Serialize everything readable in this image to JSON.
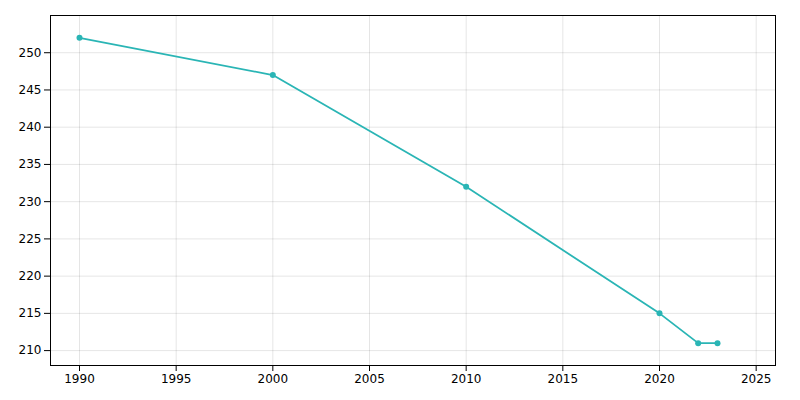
{
  "chart_data": {
    "type": "line",
    "x": [
      1990,
      2000,
      2010,
      2020,
      2022,
      2023
    ],
    "values": [
      252,
      247,
      232,
      215,
      211,
      211
    ],
    "color": "#2ab5b5",
    "marker": "circle",
    "xlim": [
      1988.5,
      2026
    ],
    "ylim": [
      208,
      255
    ],
    "xticks": [
      1990,
      1995,
      2000,
      2005,
      2010,
      2015,
      2020,
      2025
    ],
    "yticks": [
      210,
      215,
      220,
      225,
      230,
      235,
      240,
      245,
      250
    ],
    "grid": true
  }
}
